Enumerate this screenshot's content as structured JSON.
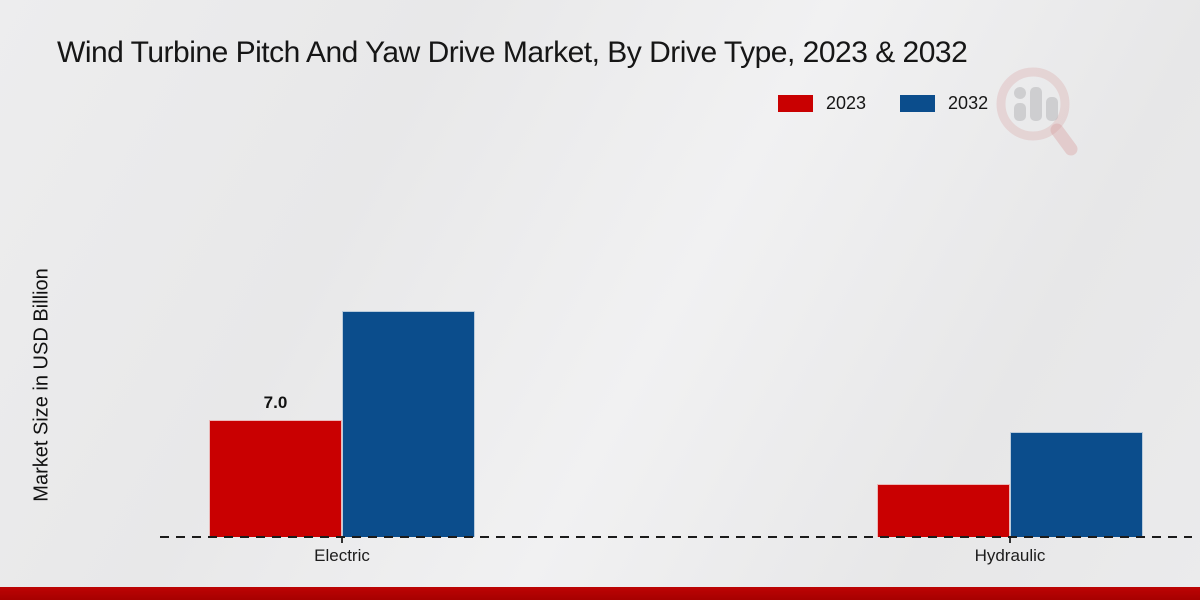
{
  "chart_data": {
    "type": "bar",
    "title": "Wind Turbine Pitch And Yaw Drive Market, By Drive Type, 2023 & 2032",
    "ylabel": "Market Size in USD Billion",
    "categories": [
      "Electric",
      "Hydraulic"
    ],
    "series": [
      {
        "name": "2023",
        "color": "#c90001",
        "values": [
          7.0,
          3.2
        ]
      },
      {
        "name": "2032",
        "color": "#0b4d8c",
        "values": [
          13.5,
          6.3
        ]
      }
    ],
    "value_labels": [
      {
        "series_index": 0,
        "category_index": 0,
        "text": "7.0"
      }
    ],
    "ylim": [
      0,
      14
    ],
    "grid": false,
    "legend_position": "top-right",
    "baseline_style": "dashed"
  },
  "watermark": {
    "icon": "magnifier-bar-chart-logo"
  },
  "footer": {
    "strip_color": "#b00202"
  }
}
